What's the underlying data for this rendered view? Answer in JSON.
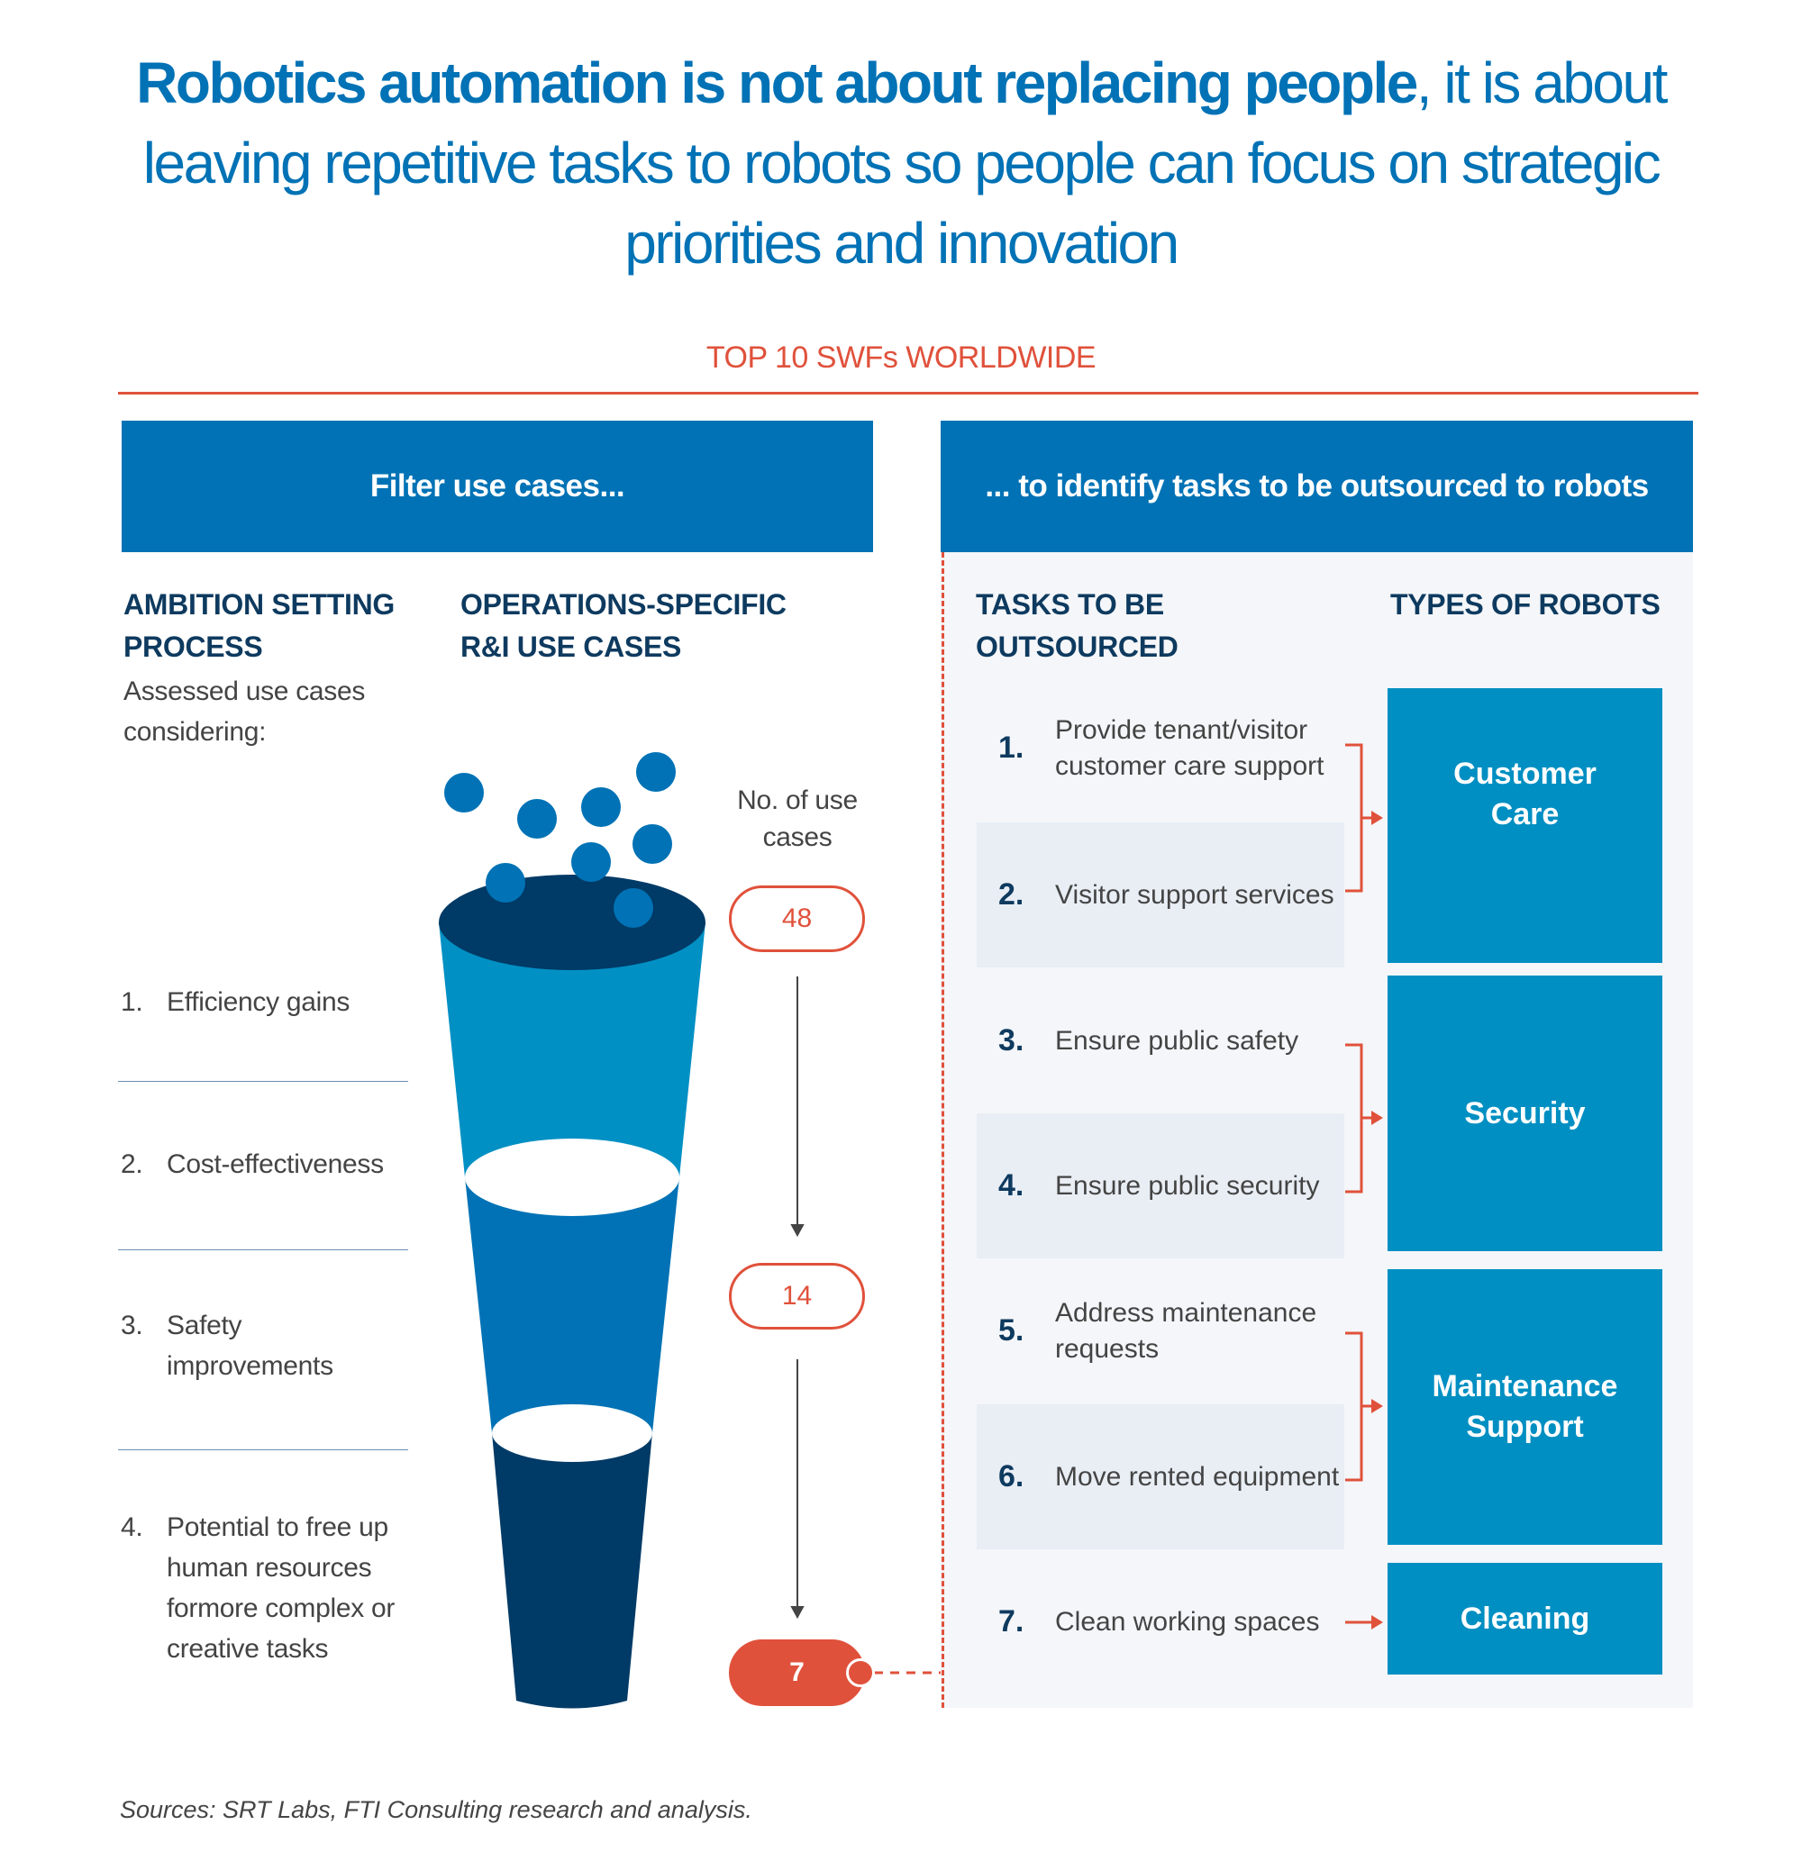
{
  "title": {
    "bold": "Robotics automation is not about replacing people",
    "rest": ", it is about leaving repetitive tasks to robots so people can focus on strategic priorities and innovation"
  },
  "subtitle": "TOP 10 SWFs WORLDWIDE",
  "left_header": "Filter use cases...",
  "right_header": "... to identify tasks to be outsourced to robots",
  "ambition": {
    "heading": "AMBITION SETTING PROCESS",
    "intro": "Assessed use cases considering:",
    "items": [
      {
        "n": "1.",
        "label": "Efficiency gains"
      },
      {
        "n": "2.",
        "label": "Cost-effectiveness"
      },
      {
        "n": "3.",
        "label": "Safety improvements"
      },
      {
        "n": "4.",
        "label": "Potential to free up human resources formore complex or creative tasks"
      }
    ]
  },
  "operations": {
    "heading": "OPERATIONS-SPECIFIC R&I USE CASES",
    "count_label": "No. of use cases",
    "counts": [
      "48",
      "14",
      "7"
    ]
  },
  "tasks": {
    "heading": "TASKS TO BE OUTSOURCED",
    "items": [
      {
        "n": "1.",
        "label": "Provide tenant/visitor customer care support"
      },
      {
        "n": "2.",
        "label": "Visitor support services"
      },
      {
        "n": "3.",
        "label": "Ensure public safety"
      },
      {
        "n": "4.",
        "label": "Ensure public security"
      },
      {
        "n": "5.",
        "label": "Address maintenance requests"
      },
      {
        "n": "6.",
        "label": "Move rented equipment"
      },
      {
        "n": "7.",
        "label": "Clean working spaces"
      }
    ]
  },
  "robots": {
    "heading": "TYPES OF ROBOTS",
    "items": [
      "Customer Care",
      "Security",
      "Maintenance Support",
      "Cleaning"
    ]
  },
  "sources": "Sources: SRT Labs, FTI Consulting research and analysis.",
  "colors": {
    "primary": "#0072b5",
    "accent": "#e0513b",
    "robot_box": "#008fc2",
    "funnel_top": "#0090c4",
    "funnel_mid": "#0072b5",
    "funnel_bottom": "#003a66"
  }
}
